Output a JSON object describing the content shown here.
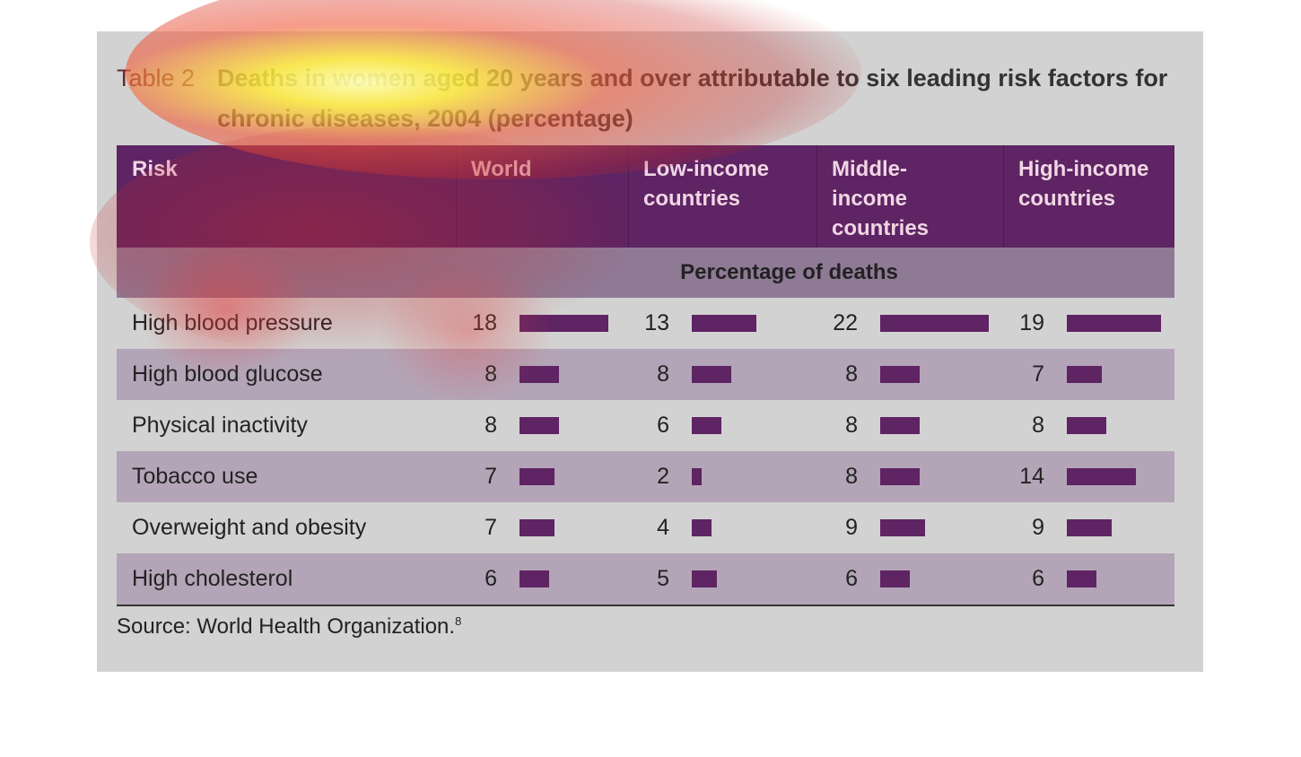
{
  "table": {
    "label": "Table 2",
    "title": "Deaths in women aged 20 years and over attributable to six leading risk factors for chronic diseases, 2004 (percentage)",
    "columns": [
      "Risk",
      "World",
      "Low-income countries",
      "Middle-income countries",
      "High-income countries"
    ],
    "unit_row": "Percentage of deaths",
    "rows": [
      {
        "risk": "High blood pressure",
        "values": [
          18,
          13,
          22,
          19
        ]
      },
      {
        "risk": "High blood glucose",
        "values": [
          8,
          8,
          8,
          7
        ]
      },
      {
        "risk": "Physical inactivity",
        "values": [
          8,
          6,
          8,
          8
        ]
      },
      {
        "risk": "Tobacco use",
        "values": [
          7,
          2,
          8,
          14
        ]
      },
      {
        "risk": "Overweight and obesity",
        "values": [
          7,
          4,
          9,
          9
        ]
      },
      {
        "risk": "High cholesterol",
        "values": [
          6,
          5,
          6,
          6
        ]
      }
    ],
    "bar_color": "#5e2463",
    "source": "Source: World Health Organization.",
    "source_ref": "8"
  }
}
